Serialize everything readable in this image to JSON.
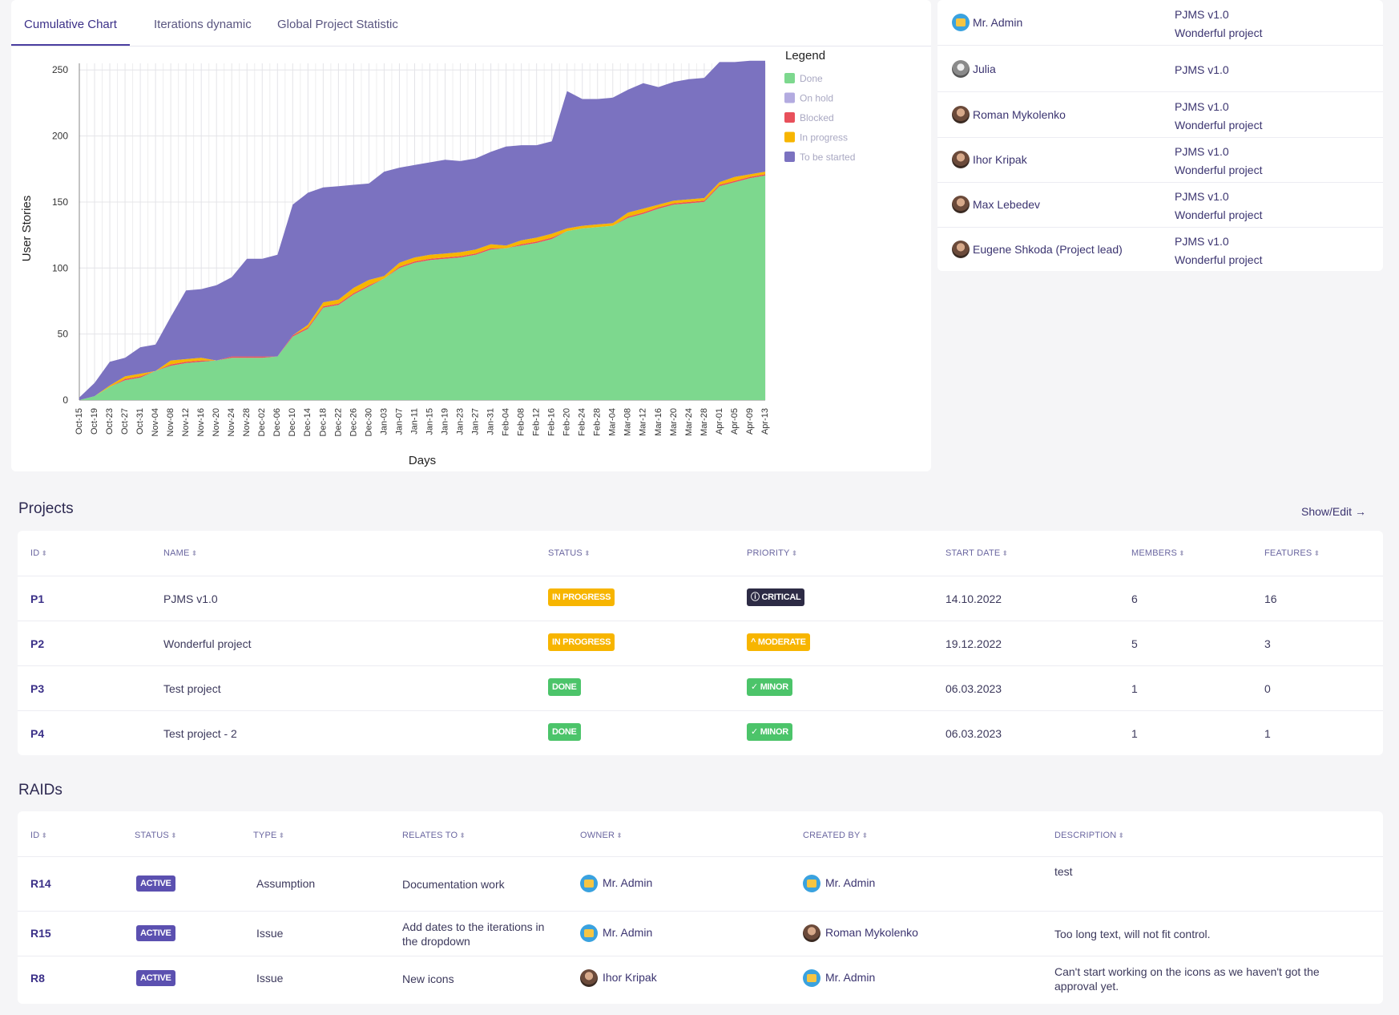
{
  "tabs": [
    "Cumulative Chart",
    "Iterations dynamic",
    "Global Project Statistic"
  ],
  "chart_data": {
    "type": "area",
    "title": "",
    "xlabel": "Days",
    "ylabel": "User Stories",
    "ylim": [
      0,
      255
    ],
    "yticks": [
      0,
      50,
      100,
      150,
      200,
      250
    ],
    "grid": true,
    "legend_title": "Legend",
    "legend_position": "right",
    "x": [
      "Oct-15",
      "Oct-19",
      "Oct-23",
      "Oct-27",
      "Oct-31",
      "Nov-04",
      "Nov-08",
      "Nov-12",
      "Nov-16",
      "Nov-20",
      "Nov-24",
      "Nov-28",
      "Dec-02",
      "Dec-06",
      "Dec-10",
      "Dec-14",
      "Dec-18",
      "Dec-22",
      "Dec-26",
      "Dec-30",
      "Jan-03",
      "Jan-07",
      "Jan-11",
      "Jan-15",
      "Jan-19",
      "Jan-23",
      "Jan-27",
      "Jan-31",
      "Feb-04",
      "Feb-08",
      "Feb-12",
      "Feb-16",
      "Feb-20",
      "Feb-24",
      "Feb-28",
      "Mar-04",
      "Mar-08",
      "Mar-12",
      "Mar-16",
      "Mar-20",
      "Mar-24",
      "Mar-28",
      "Apr-01",
      "Apr-05",
      "Apr-09",
      "Apr-13"
    ],
    "series": [
      {
        "name": "Done",
        "color": "#7dd88e",
        "values": [
          0,
          3,
          10,
          15,
          17,
          22,
          26,
          28,
          29,
          30,
          32,
          32,
          32,
          33,
          48,
          54,
          70,
          72,
          80,
          86,
          92,
          100,
          104,
          106,
          107,
          108,
          110,
          114,
          115,
          117,
          119,
          122,
          128,
          130,
          131,
          132,
          138,
          141,
          145,
          148,
          149,
          150,
          162,
          165,
          168,
          170
        ]
      },
      {
        "name": "On hold",
        "color": "#b3abe0",
        "values": [
          0,
          0,
          0,
          0,
          0,
          0,
          0,
          0,
          0,
          0,
          0,
          0,
          0,
          0,
          0,
          0,
          0,
          0,
          0,
          0,
          0,
          0,
          0,
          0,
          0,
          0,
          0,
          0,
          0,
          0,
          0,
          0,
          0,
          0,
          0,
          0,
          0,
          0,
          0,
          0,
          0,
          0,
          0,
          0,
          0,
          0
        ]
      },
      {
        "name": "Blocked",
        "color": "#e8505b",
        "values": [
          0,
          0,
          0,
          1,
          1,
          0,
          1,
          1,
          1,
          0,
          1,
          1,
          1,
          0,
          1,
          1,
          1,
          1,
          1,
          1,
          0,
          1,
          1,
          1,
          1,
          1,
          1,
          1,
          0,
          1,
          1,
          1,
          0,
          0,
          0,
          0,
          1,
          1,
          1,
          1,
          1,
          1,
          1,
          1,
          1,
          1
        ]
      },
      {
        "name": "In progress",
        "color": "#f7b500",
        "values": [
          0,
          0,
          1,
          2,
          2,
          0,
          3,
          2,
          2,
          0,
          0,
          0,
          0,
          0,
          0,
          2,
          3,
          3,
          4,
          4,
          2,
          3,
          3,
          3,
          3,
          3,
          3,
          3,
          2,
          3,
          3,
          3,
          2,
          2,
          2,
          2,
          3,
          3,
          2,
          2,
          2,
          2,
          2,
          3,
          2,
          2
        ]
      },
      {
        "name": "To be started",
        "color": "#7b72c0",
        "values": [
          2,
          10,
          18,
          14,
          20,
          20,
          33,
          52,
          52,
          57,
          60,
          74,
          74,
          77,
          99,
          100,
          87,
          86,
          78,
          73,
          79,
          72,
          70,
          70,
          71,
          69,
          69,
          70,
          75,
          72,
          70,
          70,
          104,
          96,
          95,
          95,
          93,
          95,
          89,
          90,
          91,
          91,
          91,
          87,
          86,
          84
        ]
      }
    ]
  },
  "members": [
    {
      "name": "Mr. Admin",
      "avatar": "admin",
      "projects": [
        "PJMS v1.0",
        "Wonderful project"
      ]
    },
    {
      "name": "Julia",
      "avatar": "grey",
      "projects": [
        "PJMS v1.0"
      ]
    },
    {
      "name": "Roman Mykolenko",
      "avatar": "photo",
      "projects": [
        "PJMS v1.0",
        "Wonderful project"
      ]
    },
    {
      "name": "Ihor Kripak",
      "avatar": "photo",
      "projects": [
        "PJMS v1.0",
        "Wonderful project"
      ]
    },
    {
      "name": "Max Lebedev",
      "avatar": "photo",
      "projects": [
        "PJMS v1.0",
        "Wonderful project"
      ]
    },
    {
      "name": "Eugene Shkoda (Project lead)",
      "avatar": "photo",
      "projects": [
        "PJMS v1.0",
        "Wonderful project"
      ]
    }
  ],
  "projects": {
    "title": "Projects",
    "show_edit": "Show/Edit",
    "headers": [
      "ID",
      "NAME",
      "STATUS",
      "PRIORITY",
      "START DATE",
      "MEMBERS",
      "FEATURES"
    ],
    "rows": [
      {
        "id": "P1",
        "name": "PJMS v1.0",
        "status": "IN PROGRESS",
        "priority": "CRITICAL",
        "start": "14.10.2022",
        "members": "6",
        "features": "16"
      },
      {
        "id": "P2",
        "name": "Wonderful project",
        "status": "IN PROGRESS",
        "priority": "MODERATE",
        "start": "19.12.2022",
        "members": "5",
        "features": "3"
      },
      {
        "id": "P3",
        "name": "Test project",
        "status": "DONE",
        "priority": "MINOR",
        "start": "06.03.2023",
        "members": "1",
        "features": "0"
      },
      {
        "id": "P4",
        "name": "Test project - 2",
        "status": "DONE",
        "priority": "MINOR",
        "start": "06.03.2023",
        "members": "1",
        "features": "1"
      }
    ]
  },
  "raids": {
    "title": "RAIDs",
    "headers": [
      "ID",
      "STATUS",
      "TYPE",
      "RELATES TO",
      "OWNER",
      "CREATED BY",
      "DESCRIPTION"
    ],
    "rows": [
      {
        "id": "R14",
        "status": "ACTIVE",
        "type": "Assumption",
        "relates": "Documentation work",
        "owner": "Mr. Admin",
        "owner_avatar": "admin",
        "created": "Mr. Admin",
        "created_avatar": "admin",
        "desc": "test"
      },
      {
        "id": "R15",
        "status": "ACTIVE",
        "type": "Issue",
        "relates": "Add dates to the iterations in the dropdown",
        "owner": "Mr. Admin",
        "owner_avatar": "admin",
        "created": "Roman Mykolenko",
        "created_avatar": "photo",
        "desc": "Too long text, will not fit control."
      },
      {
        "id": "R8",
        "status": "ACTIVE",
        "type": "Issue",
        "relates": "New icons",
        "owner": "Ihor Kripak",
        "owner_avatar": "photo",
        "created": "Mr. Admin",
        "created_avatar": "admin",
        "desc": "Can't start working on the icons as we haven't got the approval yet."
      }
    ]
  }
}
